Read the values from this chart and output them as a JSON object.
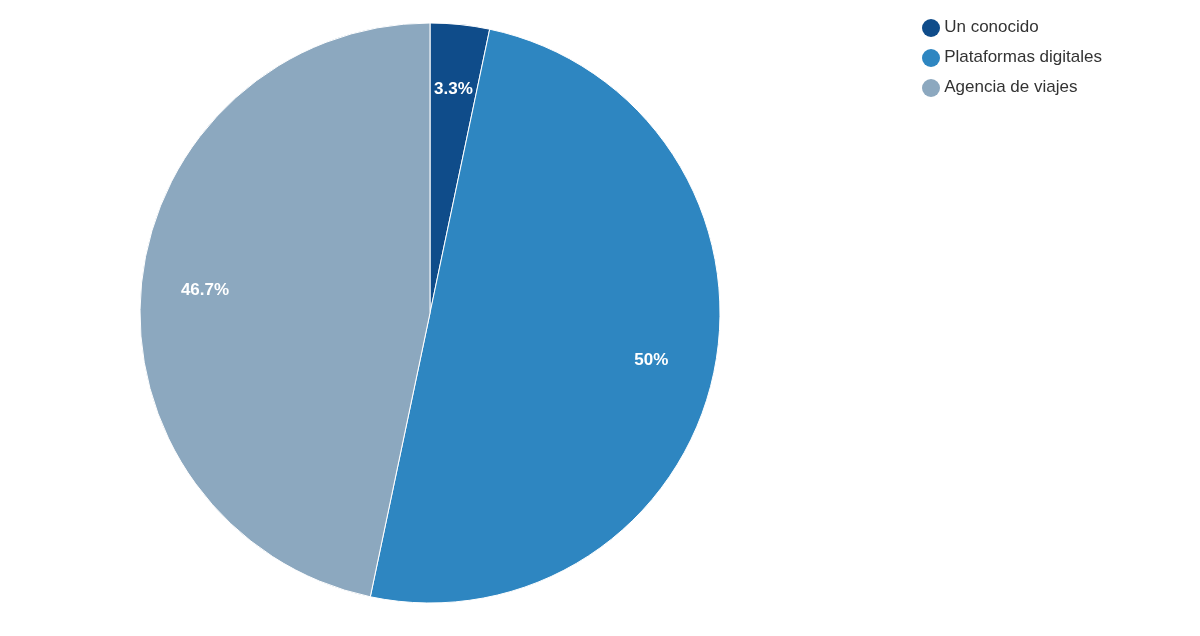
{
  "chart_data": {
    "type": "pie",
    "categories": [
      "Un conocido",
      "Plataformas digitales",
      "Agencia de viajes"
    ],
    "values": [
      3.3,
      50,
      46.7
    ],
    "colors": [
      "#0f4c8a",
      "#2e86c1",
      "#8ca8bf"
    ],
    "value_labels": [
      "3.3%",
      "50%",
      "46.7%"
    ],
    "legend": "top right"
  }
}
